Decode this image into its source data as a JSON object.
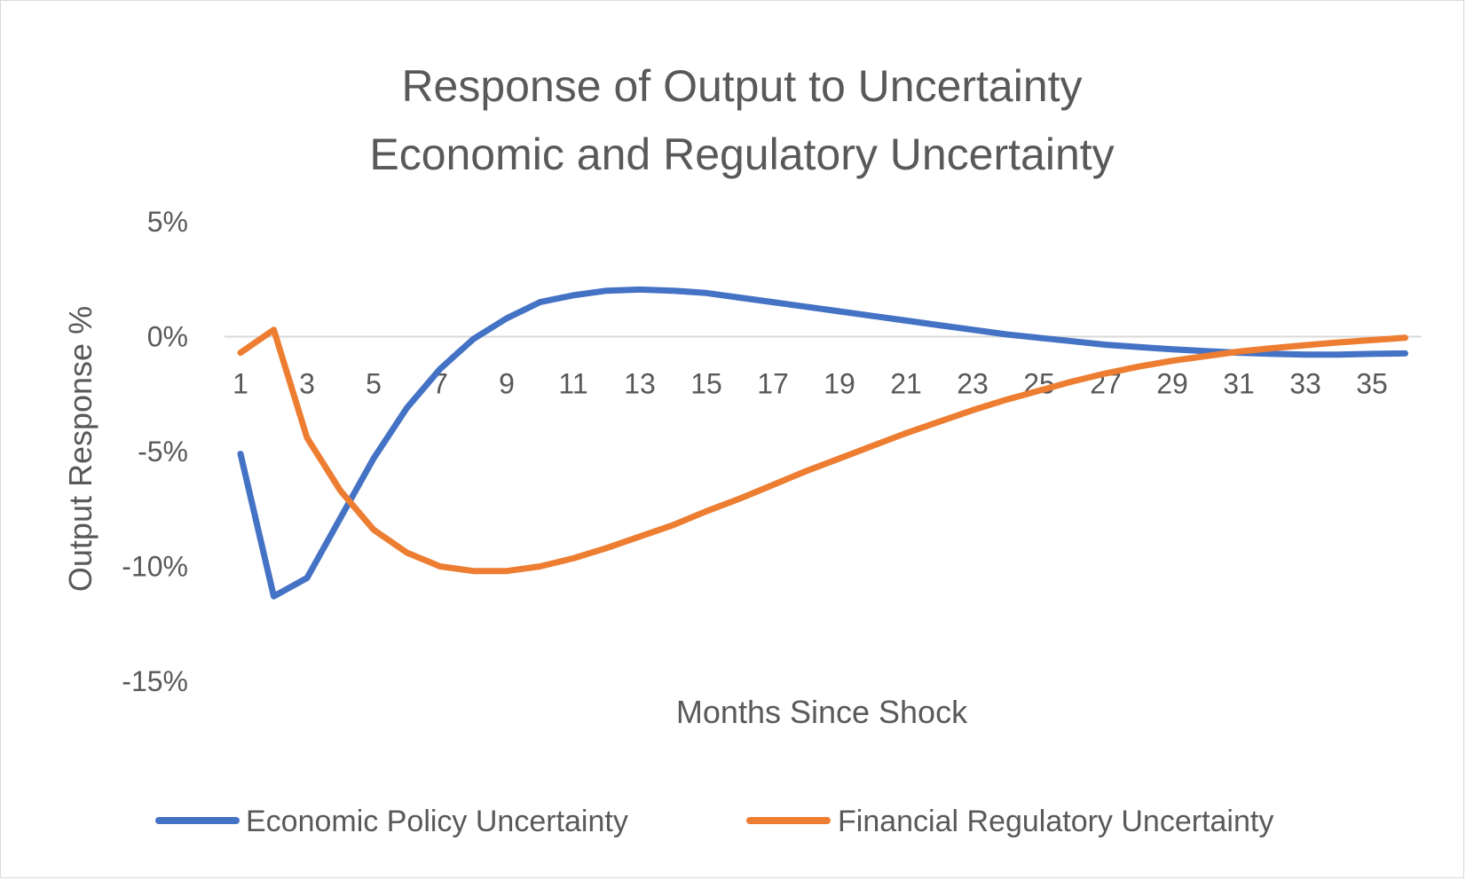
{
  "chart_data": {
    "type": "line",
    "title": "Response of Output to Uncertainty",
    "subtitle": "Economic and Regulatory Uncertainty",
    "xlabel": "Months Since Shock",
    "ylabel": "Output Response %",
    "x": [
      1,
      2,
      3,
      4,
      5,
      6,
      7,
      8,
      9,
      10,
      11,
      12,
      13,
      14,
      15,
      16,
      17,
      18,
      19,
      20,
      21,
      22,
      23,
      24,
      25,
      26,
      27,
      28,
      29,
      30,
      31,
      32,
      33,
      34,
      35,
      36
    ],
    "x_tick_labels": [
      "1",
      "3",
      "5",
      "7",
      "9",
      "11",
      "13",
      "15",
      "17",
      "19",
      "21",
      "23",
      "25",
      "27",
      "29",
      "31",
      "33",
      "35"
    ],
    "y_tick_labels": [
      "5%",
      "0%",
      "-5%",
      "-10%",
      "-15%"
    ],
    "ylim": [
      -15,
      5
    ],
    "y_ticks": [
      5,
      0,
      -5,
      -10,
      -15
    ],
    "grid": false,
    "legend_position": "bottom",
    "series": [
      {
        "name": "Economic Policy Uncertainty",
        "color": "#4472C4",
        "values": [
          -5.1,
          -11.3,
          -10.5,
          -7.9,
          -5.3,
          -3.1,
          -1.4,
          -0.1,
          0.8,
          1.5,
          1.8,
          2.0,
          2.05,
          2.0,
          1.9,
          1.7,
          1.5,
          1.3,
          1.1,
          0.9,
          0.7,
          0.5,
          0.3,
          0.1,
          -0.05,
          -0.2,
          -0.35,
          -0.45,
          -0.55,
          -0.63,
          -0.7,
          -0.75,
          -0.78,
          -0.78,
          -0.75,
          -0.73
        ]
      },
      {
        "name": "Financial Regulatory Uncertainty",
        "color": "#ED7D31",
        "values": [
          -0.7,
          0.3,
          -4.4,
          -6.7,
          -8.4,
          -9.4,
          -10.0,
          -10.2,
          -10.2,
          -10.0,
          -9.65,
          -9.2,
          -8.7,
          -8.2,
          -7.6,
          -7.05,
          -6.45,
          -5.85,
          -5.3,
          -4.75,
          -4.2,
          -3.7,
          -3.2,
          -2.75,
          -2.35,
          -1.95,
          -1.6,
          -1.3,
          -1.05,
          -0.85,
          -0.65,
          -0.5,
          -0.37,
          -0.25,
          -0.15,
          -0.05
        ]
      }
    ]
  }
}
